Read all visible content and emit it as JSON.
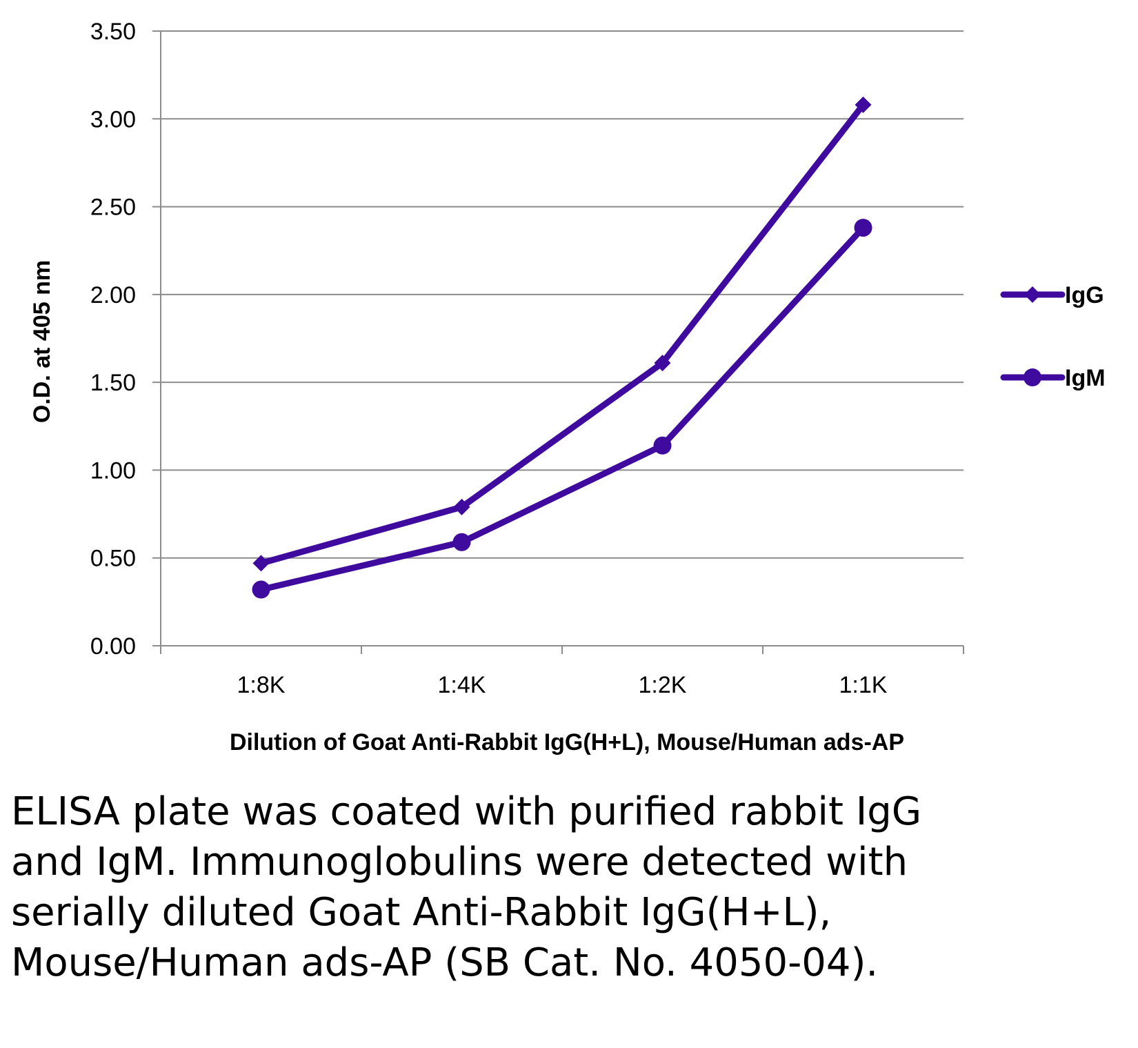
{
  "chart_data": {
    "type": "line",
    "title": "",
    "xlabel": "Dilution of Goat Anti-Rabbit IgG(H+L), Mouse/Human ads-AP",
    "ylabel": "O.D. at 405 nm",
    "categories": [
      "1:8K",
      "1:4K",
      "1:2K",
      "1:1K"
    ],
    "y_ticks": [
      "0.00",
      "0.50",
      "1.00",
      "1.50",
      "2.00",
      "2.50",
      "3.00",
      "3.50"
    ],
    "ylim": [
      0,
      3.5
    ],
    "grid": true,
    "legend_position": "right",
    "series": [
      {
        "name": "IgG",
        "marker": "diamond",
        "color": "#3f0a9e",
        "values": [
          0.47,
          0.79,
          1.61,
          3.08
        ]
      },
      {
        "name": "IgM",
        "marker": "circle",
        "color": "#3f0a9e",
        "values": [
          0.32,
          0.59,
          1.14,
          2.38
        ]
      }
    ]
  },
  "caption": "ELISA plate was coated with purified rabbit IgG and IgM.  Immunoglobulins were detected with serially diluted Goat Anti-Rabbit IgG(H+L), Mouse/Human ads-AP (SB Cat. No. 4050-04)."
}
